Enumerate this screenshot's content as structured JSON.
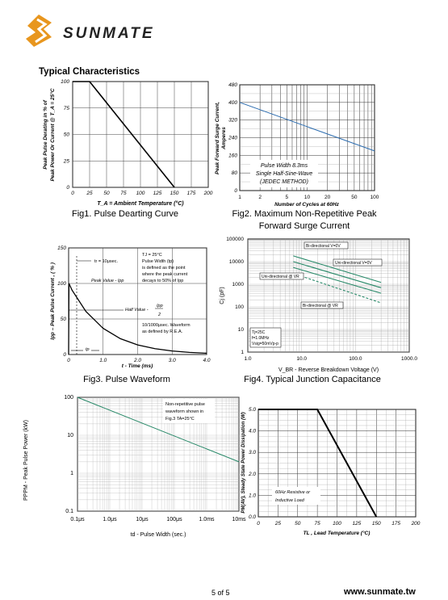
{
  "brand": {
    "name": "SUNMATE",
    "color": "#e8961e"
  },
  "section_title": "Typical Characteristics",
  "figures": [
    {
      "id": "fig1",
      "caption": "Fig1. Pulse Dearting Curve",
      "chart_data": {
        "type": "line",
        "xlabel": "T_A = Ambient Temperature (°C)",
        "ylabel_lines": [
          "Peak Pulse Derating in % of",
          "Peak Power Or Current @ T_A = 25°C"
        ],
        "xticks": [
          "0",
          "25",
          "50",
          "75",
          "100",
          "125",
          "150",
          "175",
          "200"
        ],
        "yticks": [
          "0",
          "25",
          "50",
          "75",
          "100"
        ],
        "xlim": [
          0,
          200
        ],
        "ylim": [
          0,
          100
        ],
        "series": [
          {
            "x": [
              0,
              25,
              150
            ],
            "y": [
              100,
              100,
              0
            ]
          }
        ]
      }
    },
    {
      "id": "fig2",
      "caption_lines": [
        "Fig2. Maximum Non-Repetitive Peak",
        "Forward Surge Current"
      ],
      "chart_data": {
        "type": "line",
        "xlabel": "Number of Cycles at 60Hz",
        "ylabel_lines": [
          "Peak Forward Surge Current,",
          "Amperes"
        ],
        "xticks": [
          "1",
          "2",
          "5",
          "10",
          "20",
          "50",
          "100"
        ],
        "yticks": [
          "0",
          "80",
          "160",
          "240",
          "320",
          "400",
          "480"
        ],
        "xscale": "log",
        "xlim": [
          1,
          100
        ],
        "ylim": [
          0,
          480
        ],
        "annotation_lines": [
          "Pulse Width 8.3ms",
          "Single Half-Sine-Wave",
          "(JEDEC METHOD)"
        ],
        "series": [
          {
            "x": [
              1,
              100
            ],
            "y": [
              400,
              180
            ]
          }
        ]
      }
    },
    {
      "id": "fig3",
      "caption": "Fig3. Pulse Waveform",
      "chart_data": {
        "type": "line",
        "xlabel": "t - Time (ms)",
        "ylabel": "Ipp – Peak Pulse Current , ( % )",
        "xticks": [
          "0",
          "1.0",
          "2.0",
          "3.0",
          "4.0"
        ],
        "yticks": [
          "0",
          "50",
          "100",
          "150"
        ],
        "xlim": [
          0,
          4
        ],
        "ylim": [
          0,
          150
        ],
        "annotations": {
          "conditions": [
            "TJ = 25°C",
            "Pulse Width (tp)",
            "is defined as the point",
            "where the peak current",
            "decays to 50% of Ipp"
          ],
          "tr": "tr = 10μsec.",
          "peak": "Peak Value - Ipp",
          "half_prefix": "Half Value -",
          "half_num": "Ipp",
          "half_den": "2",
          "waveform": [
            "10/1000μsec. Waveform",
            "as defined by R.E.A."
          ],
          "tp": "tp",
          "e": "e"
        },
        "series": [
          {
            "x": [
              0,
              0.01,
              0.1,
              0.5,
              1.0,
              1.5,
              2.0,
              2.5,
              3.0,
              3.5,
              4.0
            ],
            "y": [
              0,
              100,
              90.5,
              60.7,
              36.8,
              22.3,
              13.5,
              8.2,
              5.0,
              3.0,
              1.8
            ]
          }
        ]
      }
    },
    {
      "id": "fig4",
      "caption": "Fig4. Typical Junction Capacitance",
      "chart_data": {
        "type": "line",
        "xlabel": "V_BR - Reverse Breakdown Voltage (V)",
        "ylabel": "Cj (pF)",
        "xticks": [
          "1.0",
          "10.0",
          "100.0",
          "1000.0"
        ],
        "yticks": [
          "1",
          "10",
          "100",
          "1000",
          "10000",
          "100000"
        ],
        "xscale": "log",
        "yscale": "log",
        "xlim": [
          1,
          1000
        ],
        "ylim": [
          1,
          100000
        ],
        "labels": [
          "Bi-directional V=0V",
          "Uni-directional V=0V",
          "Uni-directional @ VR",
          "Bi-directional @ VR"
        ],
        "conditions": [
          "Tj=25C",
          "f=1.0MHz",
          "Vsig=50mVp-p"
        ],
        "series": [
          {
            "name": "Bi-directional V=0V",
            "x": [
              7,
              300
            ],
            "y": [
              18000,
              1200
            ],
            "dashed": false
          },
          {
            "name": "Uni-directional V=0V",
            "x": [
              7,
              300
            ],
            "y": [
              10000,
              700
            ],
            "dashed": false
          },
          {
            "name": "Uni-directional @ VR",
            "x": [
              7,
              300
            ],
            "y": [
              5500,
              400
            ],
            "dashed": false
          },
          {
            "name": "Bi-directional @ VR",
            "x": [
              7,
              300
            ],
            "y": [
              3000,
              150
            ],
            "dashed": true
          }
        ]
      }
    },
    {
      "id": "fig5",
      "chart_data": {
        "type": "line",
        "xlabel": "td - Pulse Width (sec.)",
        "ylabel": "PPPM - Peak Pulse Power (kW)",
        "xticks": [
          "0.1μs",
          "1.0μs",
          "10μs",
          "100μs",
          "1.0ms",
          "10ms"
        ],
        "yticks": [
          "0.1",
          "1",
          "10",
          "100"
        ],
        "xscale": "log",
        "yscale": "log",
        "annotation_lines": [
          "Non-repetitive pulse",
          "waveform shown in",
          "Fig.3 TA=25°C"
        ],
        "series": [
          {
            "x": [
              "0.1μs",
              "10ms"
            ],
            "y": [
              100,
              2
            ]
          }
        ]
      }
    },
    {
      "id": "fig6",
      "chart_data": {
        "type": "line",
        "xlabel": "TL , Lead Temperature (°C)",
        "ylabel": "PM(AV), Steady State Power Dissipation (W)",
        "xticks": [
          "0",
          "25",
          "50",
          "75",
          "100",
          "125",
          "150",
          "175",
          "200"
        ],
        "yticks": [
          "0.0",
          "1.0",
          "2.0",
          "3.0",
          "4.0",
          "5.0"
        ],
        "xlim": [
          0,
          200
        ],
        "ylim": [
          0,
          5
        ],
        "annotation_lines": [
          "60Hz Resistive or",
          "Inductive Load"
        ],
        "series": [
          {
            "x": [
              0,
              75,
              150
            ],
            "y": [
              5,
              5,
              0
            ]
          }
        ]
      }
    }
  ],
  "footer": {
    "page": "5 of  5",
    "url": "www.sunmate.tw"
  }
}
